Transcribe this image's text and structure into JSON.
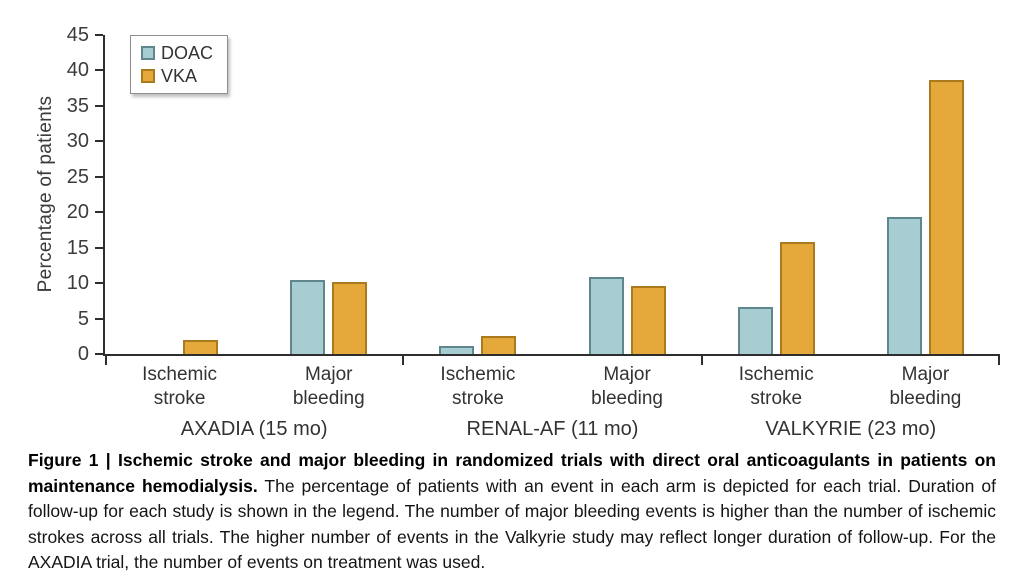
{
  "chart_data": {
    "type": "bar",
    "title": "",
    "xlabel": "",
    "ylabel": "Percentage of patients",
    "ylim": [
      0,
      45
    ],
    "ytick_step": 5,
    "grid": false,
    "legend_position": "top-left",
    "series": [
      {
        "name": "DOAC",
        "fill": "#a7cdd2",
        "border": "#5f868d"
      },
      {
        "name": "VKA",
        "fill": "#e5a83b",
        "border": "#aa7a1d"
      }
    ],
    "groups": [
      {
        "label": "AXADIA (15 mo)",
        "categories": [
          {
            "label": [
              "Ischemic",
              "stroke"
            ],
            "values": [
              0,
              2.0
            ]
          },
          {
            "label": [
              "Major",
              "bleeding"
            ],
            "values": [
              10.5,
              10.2
            ]
          }
        ]
      },
      {
        "label": "RENAL-AF (11 mo)",
        "categories": [
          {
            "label": [
              "Ischemic",
              "stroke"
            ],
            "values": [
              1.1,
              2.6
            ]
          },
          {
            "label": [
              "Major",
              "bleeding"
            ],
            "values": [
              10.8,
              9.6
            ]
          }
        ]
      },
      {
        "label": "VALKYRIE (23 mo)",
        "categories": [
          {
            "label": [
              "Ischemic",
              "stroke"
            ],
            "values": [
              6.7,
              15.8
            ]
          },
          {
            "label": [
              "Major",
              "bleeding"
            ],
            "values": [
              19.3,
              38.6
            ]
          }
        ]
      }
    ]
  },
  "caption": {
    "bold": "Figure 1 | Ischemic stroke and major bleeding in randomized trials with direct oral anticoagulants in patients on maintenance hemodialysis.",
    "text": "The percentage of patients with an event in each arm is depicted for each trial. Duration of follow-up for each study is shown in the legend. The number of major bleeding events is higher than the number of ischemic strokes across all trials. The higher number of events in the Valkyrie study may reflect longer duration of follow-up. For the AXADIA trial, the number of events on treatment was used."
  }
}
